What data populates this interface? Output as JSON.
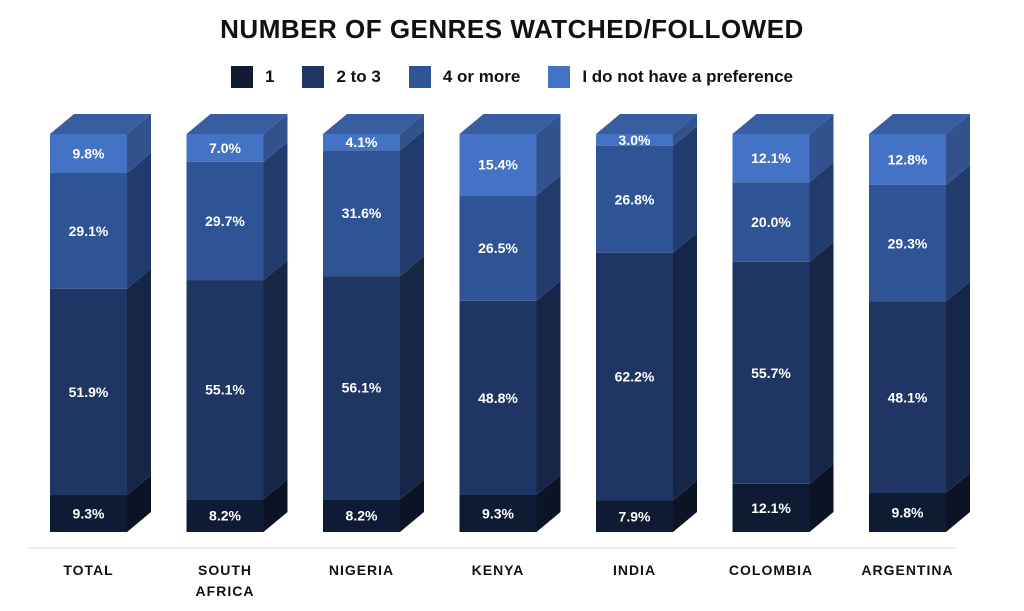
{
  "chart_data": {
    "type": "bar",
    "stacked": true,
    "title": "NUMBER OF GENRES WATCHED/FOLLOWED",
    "categories": [
      "TOTAL",
      "SOUTH AFRICA",
      "NIGERIA",
      "KENYA",
      "INDIA",
      "COLOMBIA",
      "ARGENTINA"
    ],
    "series": [
      {
        "name": "1",
        "values": [
          9.3,
          8.2,
          8.2,
          9.3,
          7.9,
          12.1,
          9.8
        ],
        "labels": [
          "9.3%",
          "8.2%",
          "8.2%",
          "9.3%",
          "7.9%",
          "12.1%",
          "9.8%"
        ]
      },
      {
        "name": "2 to 3",
        "values": [
          51.9,
          55.1,
          56.1,
          48.8,
          62.2,
          55.7,
          48.1
        ],
        "labels": [
          "51.9%",
          "55.1%",
          "56.1%",
          "48.8%",
          "62.2%",
          "55.7%",
          "48.1%"
        ]
      },
      {
        "name": "4 or more",
        "values": [
          29.1,
          29.7,
          31.6,
          26.5,
          26.8,
          20.0,
          29.3
        ],
        "labels": [
          "29.1%",
          "29.7%",
          "31.6%",
          "26.5%",
          "26.8%",
          "20.0%",
          "29.3%"
        ]
      },
      {
        "name": "I do not have a preference",
        "values": [
          9.8,
          7.0,
          4.1,
          15.4,
          3.0,
          12.1,
          12.8
        ],
        "labels": [
          "9.8%",
          "7.0%",
          "4.1%",
          "15.4%",
          "3.0%",
          "12.1%",
          "12.8%"
        ]
      }
    ],
    "colors": [
      "#0f1b33",
      "#1f3563",
      "#2e5496",
      "#4472c4"
    ],
    "ylim": [
      0,
      100
    ],
    "grid": false,
    "legend_position": "top"
  }
}
